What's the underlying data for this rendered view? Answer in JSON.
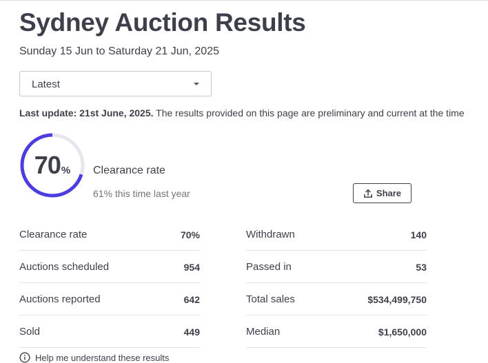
{
  "header": {
    "title": "Sydney Auction Results",
    "date_range": "Sunday 15 Jun to Saturday 21 Jun, 2025"
  },
  "period_select": {
    "selected": "Latest"
  },
  "update_notice": {
    "bold": "Last update: 21st June, 2025.",
    "text": " The results provided on this page are preliminary and current at the time"
  },
  "clearance": {
    "value": "70",
    "unit": "%",
    "rate_fraction": 0.7,
    "label": "Clearance rate",
    "comparison": "61% this time last year",
    "ring_color": "#4b3de0",
    "ring_track_color": "#e6e6ec"
  },
  "share": {
    "label": "Share",
    "icon": "share-upload-icon"
  },
  "stats": {
    "left": [
      {
        "label": "Clearance rate",
        "value": "70%"
      },
      {
        "label": "Auctions scheduled",
        "value": "954"
      },
      {
        "label": "Auctions reported",
        "value": "642"
      },
      {
        "label": "Sold",
        "value": "449"
      }
    ],
    "right": [
      {
        "label": "Withdrawn",
        "value": "140"
      },
      {
        "label": "Passed in",
        "value": "53"
      },
      {
        "label": "Total sales",
        "value": "$534,499,750"
      },
      {
        "label": "Median",
        "value": "$1,650,000"
      }
    ]
  },
  "help": {
    "label": "Help me understand these results",
    "icon": "info-icon"
  }
}
